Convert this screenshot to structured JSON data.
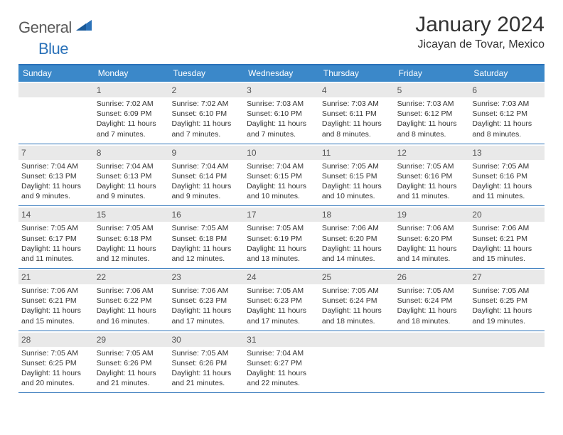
{
  "logo": {
    "text1": "General",
    "text2": "Blue"
  },
  "title": "January 2024",
  "location": "Jicayan de Tovar, Mexico",
  "weekdays": [
    "Sunday",
    "Monday",
    "Tuesday",
    "Wednesday",
    "Thursday",
    "Friday",
    "Saturday"
  ],
  "colors": {
    "header_bar": "#3b88c9",
    "rule": "#2b72b9",
    "daynum_bg": "#e9e9e9"
  },
  "weeks": [
    [
      {
        "n": "",
        "sr": "",
        "ss": "",
        "dl": ""
      },
      {
        "n": "1",
        "sr": "7:02 AM",
        "ss": "6:09 PM",
        "dl": "11 hours and 7 minutes."
      },
      {
        "n": "2",
        "sr": "7:02 AM",
        "ss": "6:10 PM",
        "dl": "11 hours and 7 minutes."
      },
      {
        "n": "3",
        "sr": "7:03 AM",
        "ss": "6:10 PM",
        "dl": "11 hours and 7 minutes."
      },
      {
        "n": "4",
        "sr": "7:03 AM",
        "ss": "6:11 PM",
        "dl": "11 hours and 8 minutes."
      },
      {
        "n": "5",
        "sr": "7:03 AM",
        "ss": "6:12 PM",
        "dl": "11 hours and 8 minutes."
      },
      {
        "n": "6",
        "sr": "7:03 AM",
        "ss": "6:12 PM",
        "dl": "11 hours and 8 minutes."
      }
    ],
    [
      {
        "n": "7",
        "sr": "7:04 AM",
        "ss": "6:13 PM",
        "dl": "11 hours and 9 minutes."
      },
      {
        "n": "8",
        "sr": "7:04 AM",
        "ss": "6:13 PM",
        "dl": "11 hours and 9 minutes."
      },
      {
        "n": "9",
        "sr": "7:04 AM",
        "ss": "6:14 PM",
        "dl": "11 hours and 9 minutes."
      },
      {
        "n": "10",
        "sr": "7:04 AM",
        "ss": "6:15 PM",
        "dl": "11 hours and 10 minutes."
      },
      {
        "n": "11",
        "sr": "7:05 AM",
        "ss": "6:15 PM",
        "dl": "11 hours and 10 minutes."
      },
      {
        "n": "12",
        "sr": "7:05 AM",
        "ss": "6:16 PM",
        "dl": "11 hours and 11 minutes."
      },
      {
        "n": "13",
        "sr": "7:05 AM",
        "ss": "6:16 PM",
        "dl": "11 hours and 11 minutes."
      }
    ],
    [
      {
        "n": "14",
        "sr": "7:05 AM",
        "ss": "6:17 PM",
        "dl": "11 hours and 11 minutes."
      },
      {
        "n": "15",
        "sr": "7:05 AM",
        "ss": "6:18 PM",
        "dl": "11 hours and 12 minutes."
      },
      {
        "n": "16",
        "sr": "7:05 AM",
        "ss": "6:18 PM",
        "dl": "11 hours and 12 minutes."
      },
      {
        "n": "17",
        "sr": "7:05 AM",
        "ss": "6:19 PM",
        "dl": "11 hours and 13 minutes."
      },
      {
        "n": "18",
        "sr": "7:06 AM",
        "ss": "6:20 PM",
        "dl": "11 hours and 14 minutes."
      },
      {
        "n": "19",
        "sr": "7:06 AM",
        "ss": "6:20 PM",
        "dl": "11 hours and 14 minutes."
      },
      {
        "n": "20",
        "sr": "7:06 AM",
        "ss": "6:21 PM",
        "dl": "11 hours and 15 minutes."
      }
    ],
    [
      {
        "n": "21",
        "sr": "7:06 AM",
        "ss": "6:21 PM",
        "dl": "11 hours and 15 minutes."
      },
      {
        "n": "22",
        "sr": "7:06 AM",
        "ss": "6:22 PM",
        "dl": "11 hours and 16 minutes."
      },
      {
        "n": "23",
        "sr": "7:06 AM",
        "ss": "6:23 PM",
        "dl": "11 hours and 17 minutes."
      },
      {
        "n": "24",
        "sr": "7:05 AM",
        "ss": "6:23 PM",
        "dl": "11 hours and 17 minutes."
      },
      {
        "n": "25",
        "sr": "7:05 AM",
        "ss": "6:24 PM",
        "dl": "11 hours and 18 minutes."
      },
      {
        "n": "26",
        "sr": "7:05 AM",
        "ss": "6:24 PM",
        "dl": "11 hours and 18 minutes."
      },
      {
        "n": "27",
        "sr": "7:05 AM",
        "ss": "6:25 PM",
        "dl": "11 hours and 19 minutes."
      }
    ],
    [
      {
        "n": "28",
        "sr": "7:05 AM",
        "ss": "6:25 PM",
        "dl": "11 hours and 20 minutes."
      },
      {
        "n": "29",
        "sr": "7:05 AM",
        "ss": "6:26 PM",
        "dl": "11 hours and 21 minutes."
      },
      {
        "n": "30",
        "sr": "7:05 AM",
        "ss": "6:26 PM",
        "dl": "11 hours and 21 minutes."
      },
      {
        "n": "31",
        "sr": "7:04 AM",
        "ss": "6:27 PM",
        "dl": "11 hours and 22 minutes."
      },
      {
        "n": "",
        "sr": "",
        "ss": "",
        "dl": ""
      },
      {
        "n": "",
        "sr": "",
        "ss": "",
        "dl": ""
      },
      {
        "n": "",
        "sr": "",
        "ss": "",
        "dl": ""
      }
    ]
  ],
  "labels": {
    "sunrise": "Sunrise:",
    "sunset": "Sunset:",
    "daylight": "Daylight:"
  }
}
